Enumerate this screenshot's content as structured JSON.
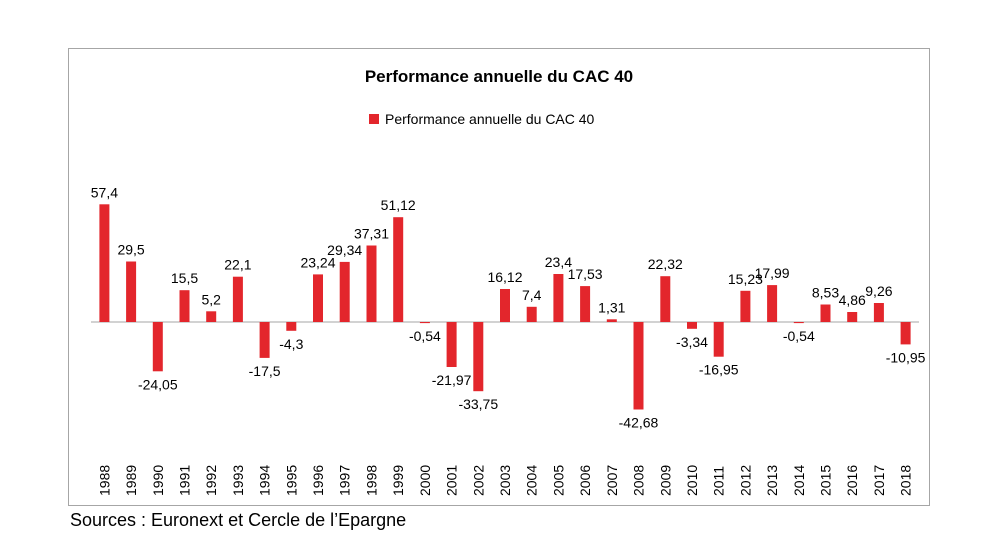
{
  "chart_data": {
    "type": "bar",
    "title": "Performance annuelle du CAC 40",
    "legend": "Performance annuelle du CAC 40",
    "legend_position": "top-center",
    "categories": [
      "1988",
      "1989",
      "1990",
      "1991",
      "1992",
      "1993",
      "1994",
      "1995",
      "1996",
      "1997",
      "1998",
      "1999",
      "2000",
      "2001",
      "2002",
      "2003",
      "2004",
      "2005",
      "2006",
      "2007",
      "2008",
      "2009",
      "2010",
      "2011",
      "2012",
      "2013",
      "2014",
      "2015",
      "2016",
      "2017",
      "2018"
    ],
    "values": [
      57.4,
      29.5,
      -24.05,
      15.5,
      5.2,
      22.1,
      -17.5,
      -4.3,
      23.24,
      29.34,
      37.31,
      51.12,
      -0.54,
      -21.97,
      -33.75,
      16.12,
      7.4,
      23.4,
      17.53,
      1.31,
      -42.68,
      22.32,
      -3.34,
      -16.95,
      15.23,
      17.99,
      -0.54,
      8.53,
      4.86,
      9.26,
      -10.95
    ],
    "labels": [
      "57,4",
      "29,5",
      "-24,05",
      "15,5",
      "5,2",
      "22,1",
      "-17,5",
      "-4,3",
      "23,24",
      "29,34",
      "37,31",
      "51,12",
      "-0,54",
      "-21,97",
      "-33,75",
      "16,12",
      "7,4",
      "23,4",
      "17,53",
      "1,31",
      "-42,68",
      "22,32",
      "-3,34",
      "-16,95",
      "15,23",
      "17,99",
      "-0,54",
      "8,53",
      "4,86",
      "9,26",
      "-10,95"
    ],
    "color": "#e3262c",
    "xlabel": "",
    "ylabel": "",
    "grid": false
  },
  "source": "Sources : Euronext et Cercle de l’Epargne"
}
